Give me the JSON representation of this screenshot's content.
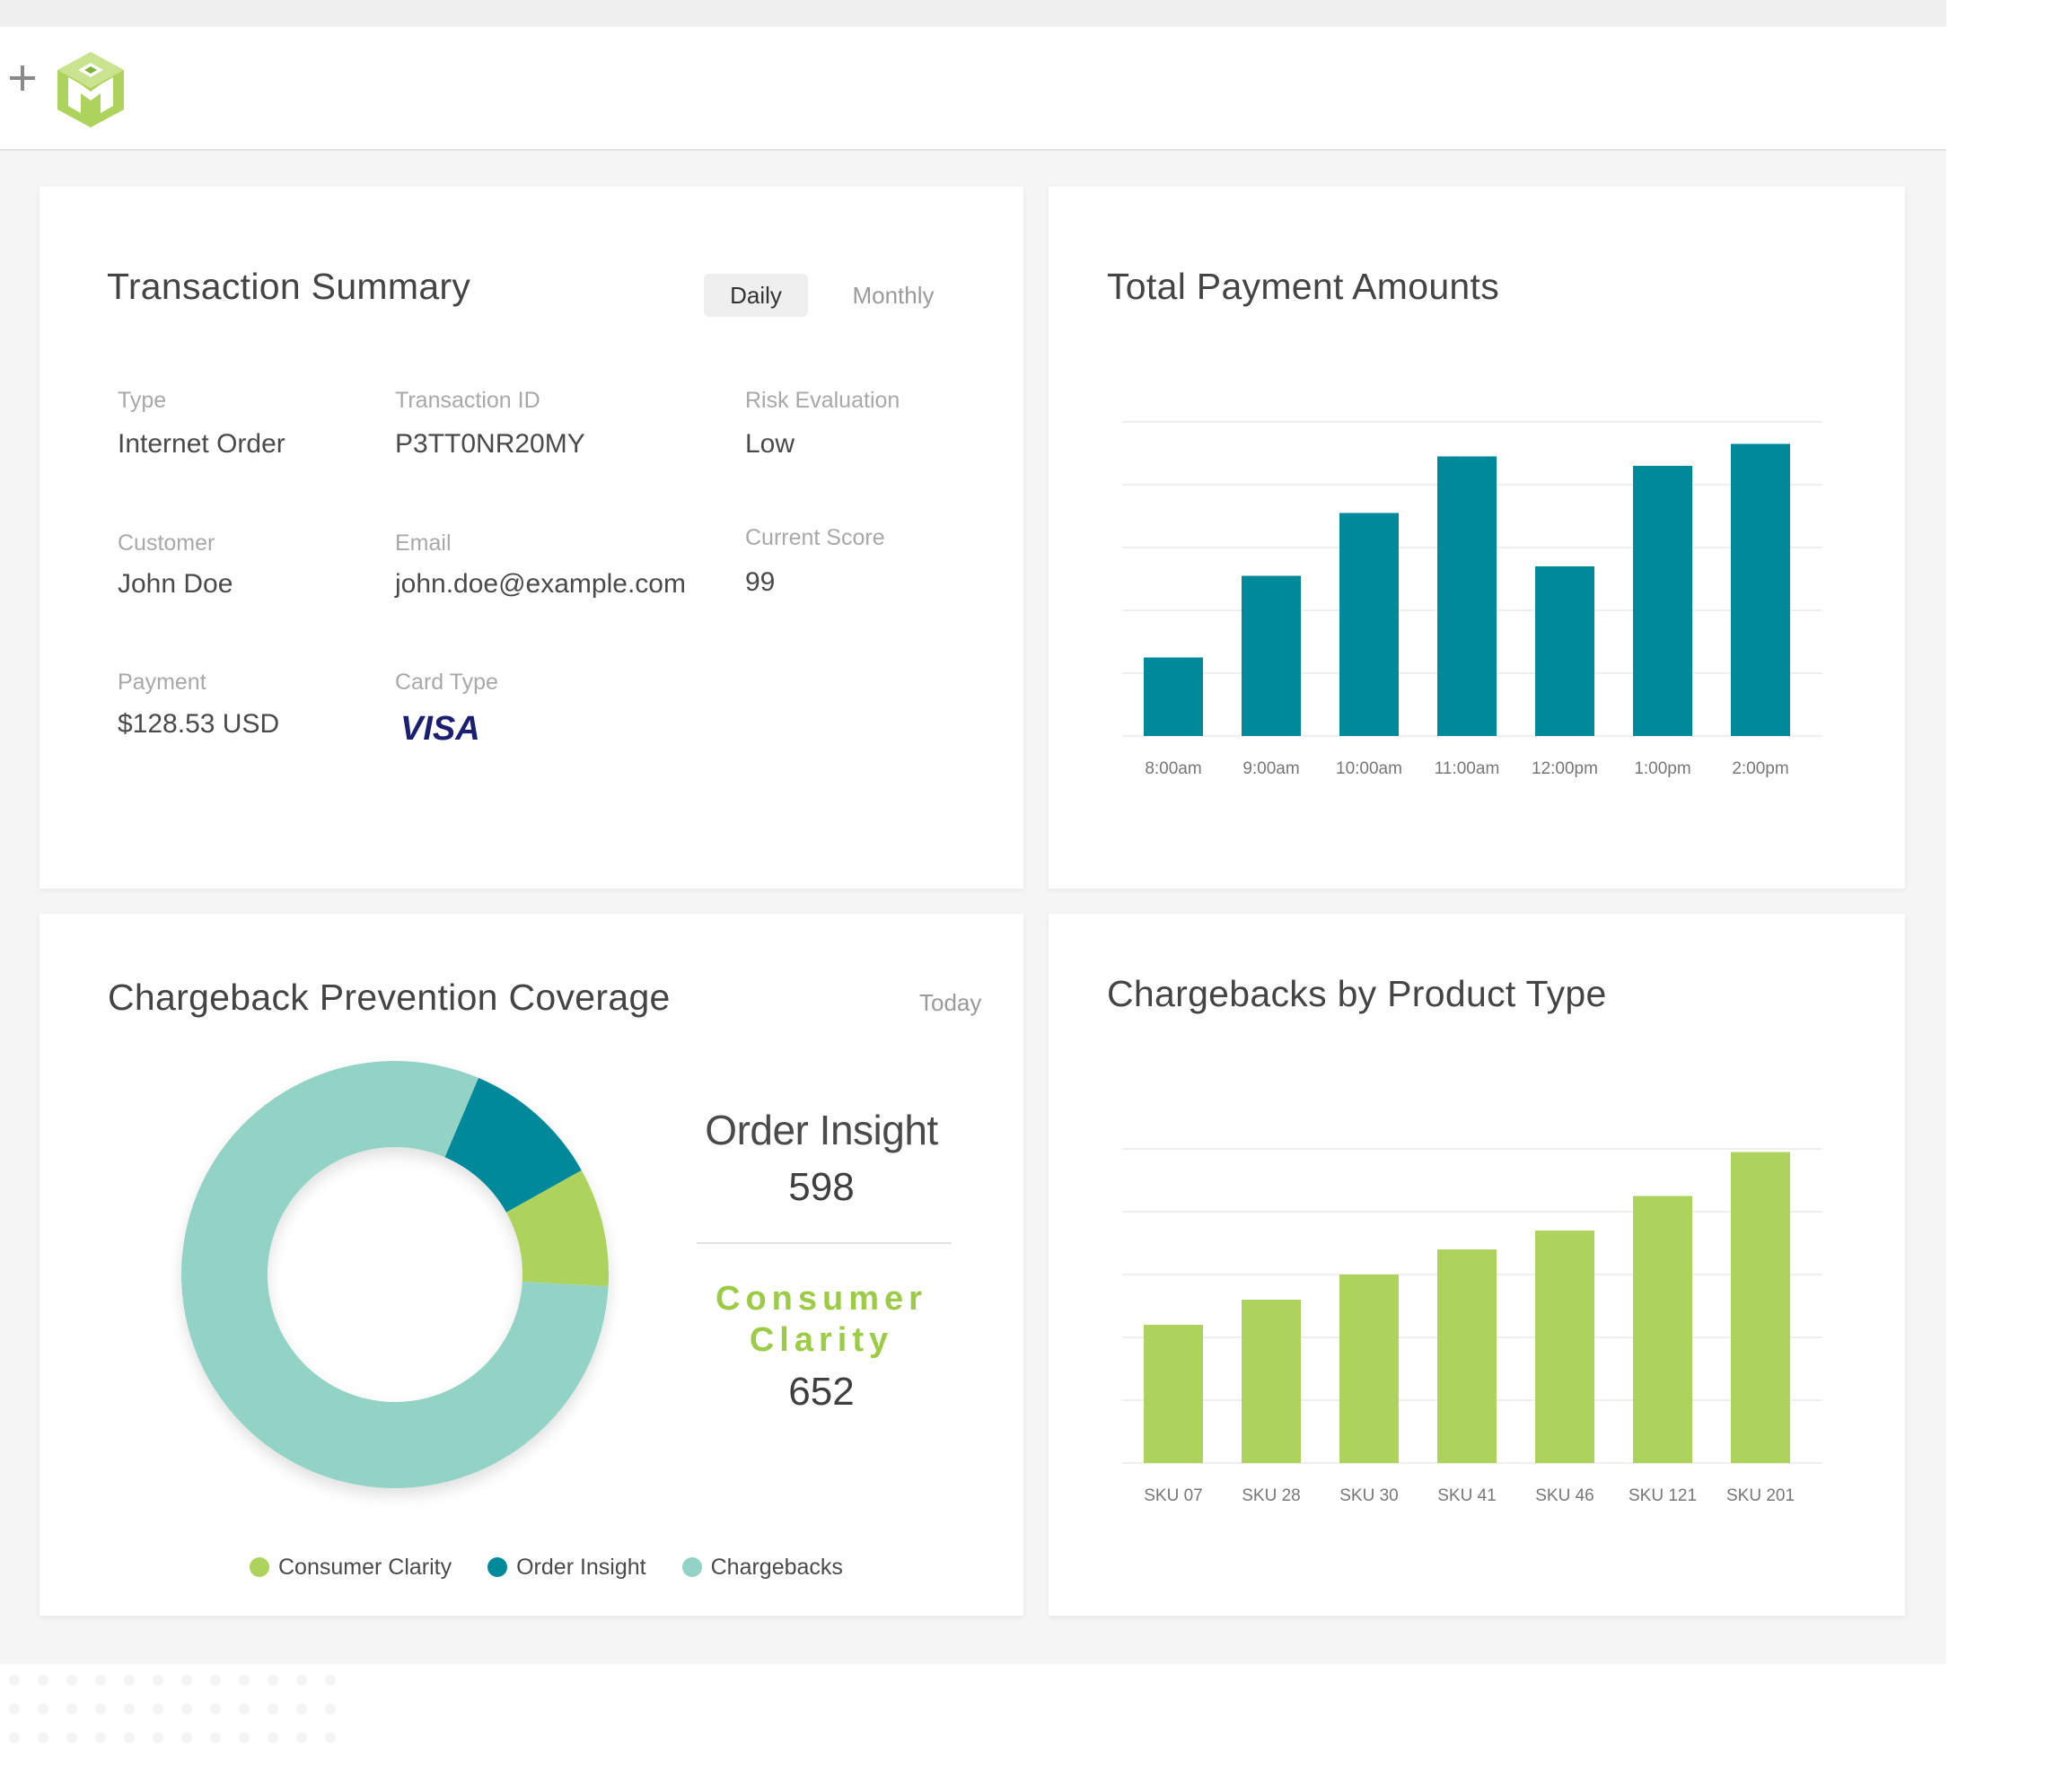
{
  "colors": {
    "teal": "#00889b",
    "lime": "#aed35c",
    "mint": "#93d3c6",
    "header_bg": "#ffffff",
    "workspace_bg": "#f5f5f5"
  },
  "header": {
    "icons": [
      "plus-icon",
      "brand-logo-icon"
    ]
  },
  "transaction_summary": {
    "title": "Transaction Summary",
    "toggle": {
      "daily": "Daily",
      "monthly": "Monthly",
      "selected": "Daily"
    },
    "fields": {
      "type": {
        "label": "Type",
        "value": "Internet Order"
      },
      "transaction_id": {
        "label": "Transaction ID",
        "value": "P3TT0NR20MY"
      },
      "risk": {
        "label": "Risk Evaluation",
        "value": "Low"
      },
      "customer": {
        "label": "Customer",
        "value": "John Doe"
      },
      "email": {
        "label": "Email",
        "value": "john.doe@example.com"
      },
      "score": {
        "label": "Current Score",
        "value": "99"
      },
      "payment": {
        "label": "Payment",
        "value": "$128.53 USD"
      },
      "card_type": {
        "label": "Card Type",
        "value": "VISA"
      }
    }
  },
  "payment_amounts": {
    "title": "Total Payment Amounts"
  },
  "coverage": {
    "title": "Chargeback Prevention Coverage",
    "period": "Today",
    "order_insight": {
      "logo": "Order Insight",
      "value": "598"
    },
    "consumer_clarity": {
      "logo_line1": "Consumer",
      "logo_line2": "Clarity",
      "value": "652"
    },
    "legend": [
      {
        "label": "Consumer Clarity",
        "color": "#aed35c"
      },
      {
        "label": "Order Insight",
        "color": "#00889b"
      },
      {
        "label": "Chargebacks",
        "color": "#93d3c6"
      }
    ]
  },
  "product_type": {
    "title": "Chargebacks by Product Type"
  },
  "chart_data": [
    {
      "type": "bar",
      "title": "Total Payment Amounts",
      "categories": [
        "8:00am",
        "9:00am",
        "10:00am",
        "11:00am",
        "12:00pm",
        "1:00pm",
        "2:00pm"
      ],
      "values": [
        25,
        51,
        71,
        89,
        54,
        86,
        93
      ],
      "ylim": [
        0,
        100
      ],
      "color": "#00889b",
      "grid": true
    },
    {
      "type": "pie",
      "title": "Chargeback Prevention Coverage",
      "donut": true,
      "categories": [
        "Order Insight",
        "Consumer Clarity",
        "Chargebacks"
      ],
      "values": [
        10.5,
        9,
        80.5
      ],
      "colors": [
        "#00889b",
        "#aed35c",
        "#93d3c6"
      ]
    },
    {
      "type": "bar",
      "title": "Chargebacks by Product Type",
      "categories": [
        "SKU 07",
        "SKU 28",
        "SKU 30",
        "SKU 41",
        "SKU 46",
        "SKU 121",
        "SKU 201"
      ],
      "values": [
        44,
        52,
        60,
        68,
        74,
        85,
        99
      ],
      "ylim": [
        0,
        100
      ],
      "color": "#aed35c",
      "grid": true
    }
  ]
}
